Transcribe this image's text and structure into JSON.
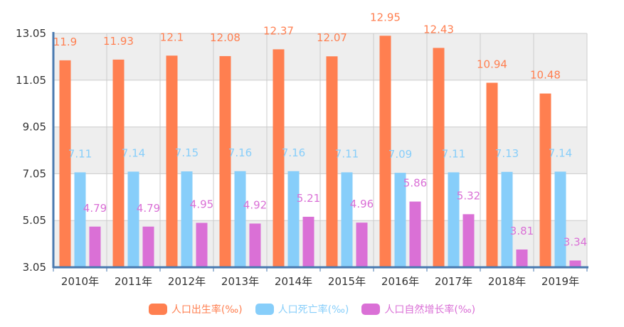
{
  "chart_data": {
    "type": "bar",
    "categories": [
      "2010年",
      "2011年",
      "2012年",
      "2013年",
      "2014年",
      "2015年",
      "2016年",
      "2017年",
      "2018年",
      "2019年"
    ],
    "series": [
      {
        "name": "人口出生率(‰)",
        "color": "#ff7f50",
        "values": [
          11.9,
          11.93,
          12.1,
          12.08,
          12.37,
          12.07,
          12.95,
          12.43,
          10.94,
          10.48
        ],
        "labels": [
          "11.9",
          "11.93",
          "12.1",
          "12.08",
          "12.37",
          "12.07",
          "12.95",
          "12.43",
          "10.94",
          "10.48"
        ]
      },
      {
        "name": "人口死亡率(‰)",
        "color": "#87cefa",
        "values": [
          7.11,
          7.14,
          7.15,
          7.16,
          7.16,
          7.11,
          7.09,
          7.11,
          7.13,
          7.14
        ],
        "labels": [
          "7.11",
          "7.14",
          "7.15",
          "7.16",
          "7.16",
          "7.11",
          "7.09",
          "7.11",
          "7.13",
          "7.14"
        ]
      },
      {
        "name": "人口自然增长率(‰)",
        "color": "#da70d6",
        "values": [
          4.79,
          4.79,
          4.95,
          4.92,
          5.21,
          4.96,
          5.86,
          5.32,
          3.81,
          3.34
        ],
        "labels": [
          "4.79",
          "4.79",
          "4.95",
          "4.92",
          "5.21",
          "4.96",
          "5.86",
          "5.32",
          "3.81",
          "3.34"
        ]
      }
    ],
    "yticks": [
      "3.05",
      "5.05",
      "7.05",
      "9.05",
      "11.05",
      "13.05"
    ],
    "ylim": [
      3.05,
      13.05
    ],
    "grid": true,
    "legend_position": "bottom-center"
  }
}
